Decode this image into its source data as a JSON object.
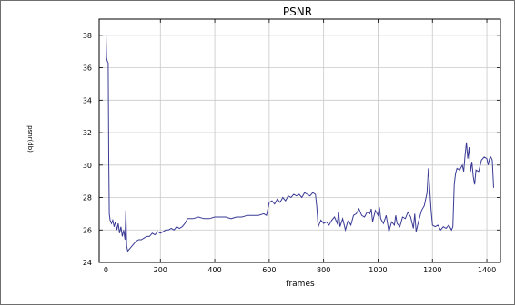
{
  "chart_data": {
    "type": "line",
    "title": "PSNR",
    "xlabel": "frames",
    "ylabel": "psnr(db)",
    "xlim": [
      -25,
      1450
    ],
    "ylim": [
      24,
      39
    ],
    "xticks": [
      0,
      200,
      400,
      600,
      800,
      1000,
      1200,
      1400
    ],
    "yticks": [
      24,
      26,
      28,
      30,
      32,
      34,
      36,
      38
    ],
    "grid": true,
    "line_color": "#3a3a96",
    "series": [
      {
        "name": "",
        "points": [
          [
            0,
            38.1
          ],
          [
            2,
            36.6
          ],
          [
            5,
            36.4
          ],
          [
            8,
            36.3
          ],
          [
            10,
            30.5
          ],
          [
            12,
            27.0
          ],
          [
            15,
            26.6
          ],
          [
            20,
            26.4
          ],
          [
            25,
            26.6
          ],
          [
            30,
            26.2
          ],
          [
            35,
            26.5
          ],
          [
            40,
            26.0
          ],
          [
            45,
            26.4
          ],
          [
            50,
            25.8
          ],
          [
            55,
            26.2
          ],
          [
            60,
            25.6
          ],
          [
            65,
            26.0
          ],
          [
            70,
            25.4
          ],
          [
            73,
            27.2
          ],
          [
            76,
            25.0
          ],
          [
            80,
            24.7
          ],
          [
            90,
            24.9
          ],
          [
            100,
            25.1
          ],
          [
            110,
            25.3
          ],
          [
            120,
            25.4
          ],
          [
            130,
            25.4
          ],
          [
            140,
            25.5
          ],
          [
            150,
            25.6
          ],
          [
            160,
            25.6
          ],
          [
            170,
            25.8
          ],
          [
            180,
            25.7
          ],
          [
            190,
            25.9
          ],
          [
            200,
            25.8
          ],
          [
            210,
            25.9
          ],
          [
            220,
            26.0
          ],
          [
            230,
            26.0
          ],
          [
            240,
            26.1
          ],
          [
            250,
            26.0
          ],
          [
            260,
            26.2
          ],
          [
            270,
            26.1
          ],
          [
            280,
            26.2
          ],
          [
            290,
            26.4
          ],
          [
            300,
            26.7
          ],
          [
            320,
            26.7
          ],
          [
            340,
            26.8
          ],
          [
            360,
            26.7
          ],
          [
            380,
            26.7
          ],
          [
            400,
            26.8
          ],
          [
            420,
            26.8
          ],
          [
            440,
            26.8
          ],
          [
            460,
            26.7
          ],
          [
            480,
            26.8
          ],
          [
            500,
            26.8
          ],
          [
            520,
            26.9
          ],
          [
            540,
            26.9
          ],
          [
            560,
            26.9
          ],
          [
            580,
            27.0
          ],
          [
            590,
            26.9
          ],
          [
            600,
            27.7
          ],
          [
            610,
            27.8
          ],
          [
            620,
            27.6
          ],
          [
            630,
            27.9
          ],
          [
            640,
            27.7
          ],
          [
            650,
            28.0
          ],
          [
            660,
            27.8
          ],
          [
            670,
            28.1
          ],
          [
            680,
            28.0
          ],
          [
            690,
            28.2
          ],
          [
            700,
            28.1
          ],
          [
            710,
            28.2
          ],
          [
            720,
            28.0
          ],
          [
            730,
            28.3
          ],
          [
            740,
            28.2
          ],
          [
            750,
            28.1
          ],
          [
            760,
            28.3
          ],
          [
            770,
            28.2
          ],
          [
            775,
            27.4
          ],
          [
            780,
            26.2
          ],
          [
            790,
            26.6
          ],
          [
            800,
            26.4
          ],
          [
            810,
            26.5
          ],
          [
            820,
            26.3
          ],
          [
            830,
            26.6
          ],
          [
            840,
            26.8
          ],
          [
            850,
            26.4
          ],
          [
            855,
            27.1
          ],
          [
            860,
            26.2
          ],
          [
            870,
            26.7
          ],
          [
            880,
            26.0
          ],
          [
            890,
            26.6
          ],
          [
            900,
            26.3
          ],
          [
            910,
            26.9
          ],
          [
            920,
            27.0
          ],
          [
            930,
            27.3
          ],
          [
            940,
            26.9
          ],
          [
            950,
            26.8
          ],
          [
            960,
            27.1
          ],
          [
            970,
            27.0
          ],
          [
            975,
            27.3
          ],
          [
            980,
            26.5
          ],
          [
            990,
            27.2
          ],
          [
            1000,
            26.9
          ],
          [
            1005,
            27.4
          ],
          [
            1010,
            26.7
          ],
          [
            1020,
            26.4
          ],
          [
            1030,
            26.9
          ],
          [
            1040,
            25.9
          ],
          [
            1050,
            26.5
          ],
          [
            1060,
            26.3
          ],
          [
            1065,
            26.9
          ],
          [
            1070,
            26.4
          ],
          [
            1080,
            26.2
          ],
          [
            1090,
            26.8
          ],
          [
            1100,
            26.7
          ],
          [
            1110,
            27.1
          ],
          [
            1120,
            26.8
          ],
          [
            1130,
            26.1
          ],
          [
            1135,
            27.0
          ],
          [
            1140,
            25.9
          ],
          [
            1150,
            26.6
          ],
          [
            1160,
            27.2
          ],
          [
            1170,
            27.5
          ],
          [
            1180,
            28.3
          ],
          [
            1185,
            29.8
          ],
          [
            1190,
            28.5
          ],
          [
            1195,
            27.2
          ],
          [
            1200,
            26.3
          ],
          [
            1210,
            26.2
          ],
          [
            1220,
            26.3
          ],
          [
            1230,
            26.0
          ],
          [
            1240,
            26.2
          ],
          [
            1250,
            26.1
          ],
          [
            1260,
            26.3
          ],
          [
            1270,
            26.0
          ],
          [
            1275,
            26.2
          ],
          [
            1280,
            28.8
          ],
          [
            1285,
            29.5
          ],
          [
            1290,
            29.8
          ],
          [
            1300,
            29.7
          ],
          [
            1310,
            30.0
          ],
          [
            1315,
            29.6
          ],
          [
            1320,
            30.6
          ],
          [
            1325,
            31.4
          ],
          [
            1330,
            30.4
          ],
          [
            1335,
            31.1
          ],
          [
            1340,
            29.6
          ],
          [
            1345,
            30.2
          ],
          [
            1350,
            29.3
          ],
          [
            1355,
            28.8
          ],
          [
            1360,
            29.7
          ],
          [
            1370,
            29.6
          ],
          [
            1380,
            30.3
          ],
          [
            1390,
            30.5
          ],
          [
            1400,
            30.4
          ],
          [
            1405,
            30.0
          ],
          [
            1410,
            30.4
          ],
          [
            1415,
            30.5
          ],
          [
            1420,
            30.3
          ],
          [
            1425,
            28.6
          ]
        ]
      }
    ]
  }
}
